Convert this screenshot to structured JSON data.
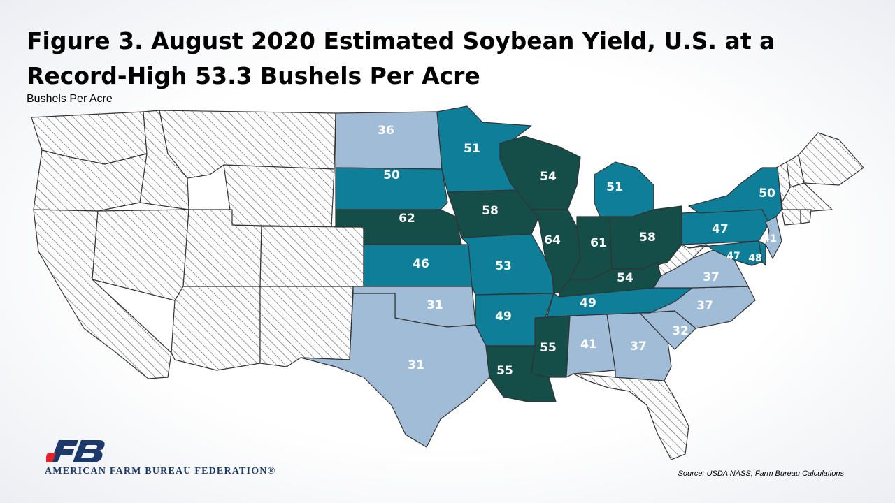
{
  "header": {
    "title_line1": "Figure 3. August 2020 Estimated Soybean Yield, U.S. at a",
    "title_line2": "Record-High 53.3 Bushels Per Acre",
    "subtitle": "Bushels Per Acre"
  },
  "colors": {
    "dark": "#154d48",
    "medium": "#0f7e99",
    "light": "#a0bcd7",
    "no_data": "#ffffff",
    "hatch": "#555555",
    "brand": "#1b3a6b",
    "logo_red": "#e2232a"
  },
  "states": [
    {
      "id": "ND",
      "value": "36",
      "tier": "light"
    },
    {
      "id": "SD",
      "value": "50",
      "tier": "medium"
    },
    {
      "id": "NE",
      "value": "62",
      "tier": "dark"
    },
    {
      "id": "KS",
      "value": "46",
      "tier": "medium"
    },
    {
      "id": "OK",
      "value": "31",
      "tier": "light"
    },
    {
      "id": "TX",
      "value": "31",
      "tier": "light"
    },
    {
      "id": "MN",
      "value": "51",
      "tier": "medium"
    },
    {
      "id": "IA",
      "value": "58",
      "tier": "dark"
    },
    {
      "id": "MO",
      "value": "53",
      "tier": "medium"
    },
    {
      "id": "AR",
      "value": "49",
      "tier": "medium"
    },
    {
      "id": "LA",
      "value": "55",
      "tier": "dark"
    },
    {
      "id": "WI",
      "value": "54",
      "tier": "dark"
    },
    {
      "id": "IL",
      "value": "64",
      "tier": "dark"
    },
    {
      "id": "MI",
      "value": "51",
      "tier": "medium"
    },
    {
      "id": "IN",
      "value": "61",
      "tier": "dark"
    },
    {
      "id": "OH",
      "value": "58",
      "tier": "dark"
    },
    {
      "id": "KY",
      "value": "54",
      "tier": "dark"
    },
    {
      "id": "TN",
      "value": "49",
      "tier": "medium"
    },
    {
      "id": "MS",
      "value": "55",
      "tier": "dark"
    },
    {
      "id": "AL",
      "value": "41",
      "tier": "light"
    },
    {
      "id": "GA",
      "value": "37",
      "tier": "light"
    },
    {
      "id": "SC",
      "value": "32",
      "tier": "light"
    },
    {
      "id": "NC",
      "value": "37",
      "tier": "light"
    },
    {
      "id": "VA",
      "value": "37",
      "tier": "light"
    },
    {
      "id": "PA",
      "value": "47",
      "tier": "medium"
    },
    {
      "id": "NY",
      "value": "50",
      "tier": "medium"
    },
    {
      "id": "NJ",
      "value": "41",
      "tier": "light"
    },
    {
      "id": "MD",
      "value": "47",
      "tier": "medium"
    },
    {
      "id": "DE",
      "value": "48",
      "tier": "medium"
    }
  ],
  "no_data_states": [
    "WA",
    "OR",
    "CA",
    "ID",
    "NV",
    "MT",
    "WY",
    "UT",
    "CO",
    "AZ",
    "NM",
    "WV",
    "FL",
    "ME",
    "NH",
    "VT",
    "MA",
    "CT",
    "RI"
  ],
  "footer": {
    "organization": "AMERICAN FARM BUREAU FEDERATION®",
    "source": "Source:  USDA  NASS, Farm Bureau Calculations"
  }
}
